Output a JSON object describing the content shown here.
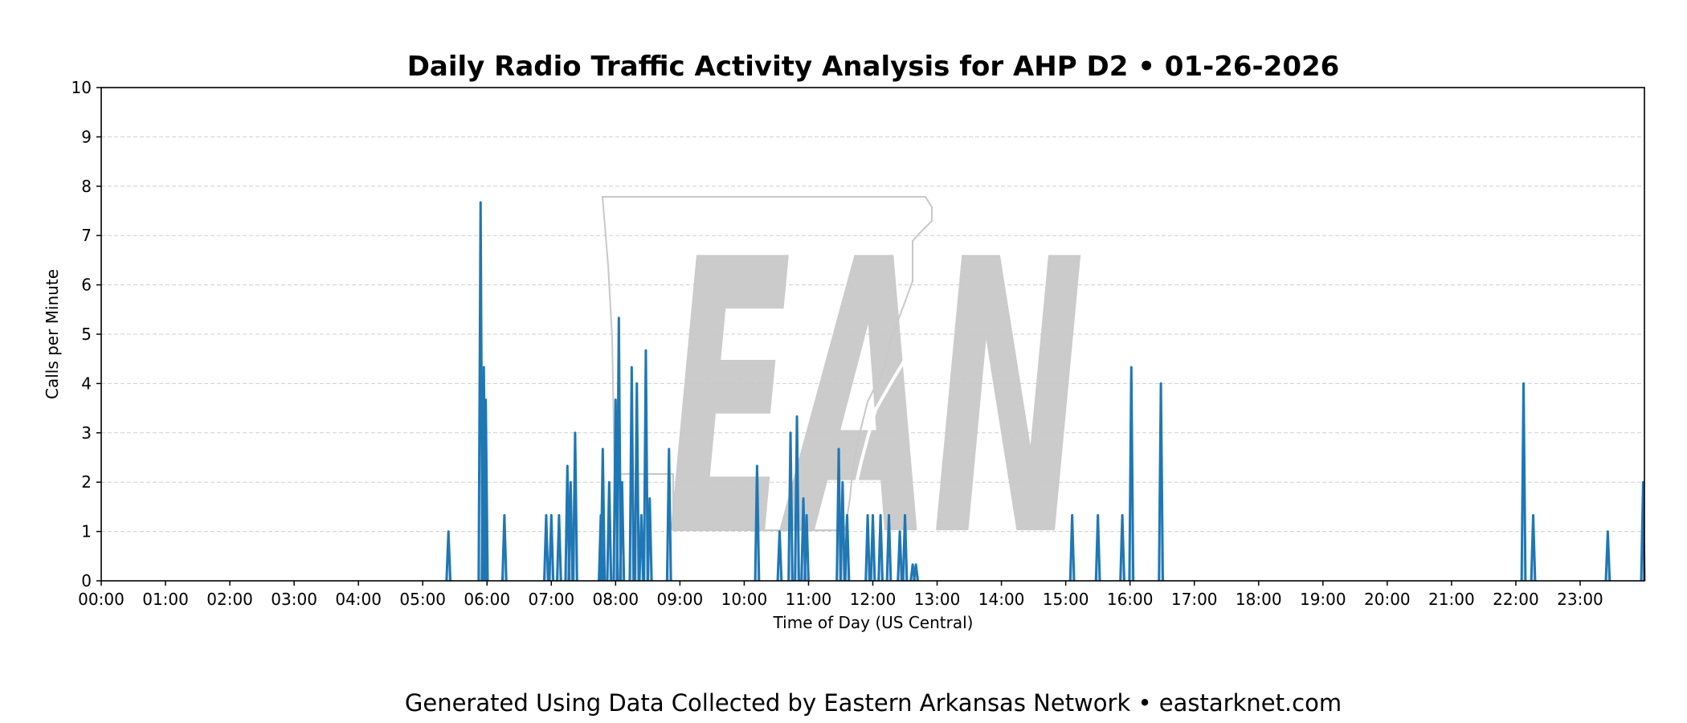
{
  "chart_data": {
    "type": "area",
    "title": "Daily Radio Traffic Activity Analysis for AHP D2 • 01-26-2026",
    "xlabel": "Time of Day (US Central)",
    "ylabel": "Calls per Minute",
    "xlim": [
      0,
      24
    ],
    "ylim": [
      0,
      10
    ],
    "grid": true,
    "x_tick_labels": [
      "00:00",
      "01:00",
      "02:00",
      "03:00",
      "04:00",
      "05:00",
      "06:00",
      "07:00",
      "08:00",
      "09:00",
      "10:00",
      "11:00",
      "12:00",
      "13:00",
      "14:00",
      "15:00",
      "16:00",
      "17:00",
      "18:00",
      "19:00",
      "20:00",
      "21:00",
      "22:00",
      "23:00"
    ],
    "y_tick_labels": [
      "0",
      "1",
      "2",
      "3",
      "4",
      "5",
      "6",
      "7",
      "8",
      "9",
      "10"
    ],
    "series": [
      {
        "color": "#1f77b4",
        "points": [
          [
            5.4,
            1.0
          ],
          [
            5.9,
            7.67
          ],
          [
            5.95,
            4.33
          ],
          [
            5.98,
            3.67
          ],
          [
            6.27,
            1.33
          ],
          [
            6.92,
            1.33
          ],
          [
            7.0,
            1.33
          ],
          [
            7.12,
            1.33
          ],
          [
            7.25,
            2.33
          ],
          [
            7.3,
            2.0
          ],
          [
            7.37,
            3.0
          ],
          [
            7.77,
            1.33
          ],
          [
            7.8,
            2.67
          ],
          [
            7.9,
            2.0
          ],
          [
            8.0,
            3.67
          ],
          [
            8.05,
            5.33
          ],
          [
            8.1,
            2.0
          ],
          [
            8.25,
            4.33
          ],
          [
            8.33,
            4.0
          ],
          [
            8.4,
            1.33
          ],
          [
            8.47,
            4.67
          ],
          [
            8.53,
            1.67
          ],
          [
            8.83,
            2.67
          ],
          [
            10.2,
            2.33
          ],
          [
            10.55,
            1.0
          ],
          [
            10.72,
            3.0
          ],
          [
            10.82,
            3.33
          ],
          [
            10.92,
            1.67
          ],
          [
            10.97,
            1.33
          ],
          [
            11.47,
            2.67
          ],
          [
            11.53,
            2.0
          ],
          [
            11.6,
            1.33
          ],
          [
            11.92,
            1.33
          ],
          [
            12.0,
            1.33
          ],
          [
            12.12,
            1.33
          ],
          [
            12.25,
            1.33
          ],
          [
            12.42,
            1.0
          ],
          [
            12.5,
            1.33
          ],
          [
            12.62,
            0.33
          ],
          [
            12.67,
            0.33
          ],
          [
            15.1,
            1.33
          ],
          [
            15.5,
            1.33
          ],
          [
            15.88,
            1.33
          ],
          [
            16.02,
            4.33
          ],
          [
            16.48,
            4.0
          ],
          [
            22.12,
            4.0
          ],
          [
            22.27,
            1.33
          ],
          [
            23.43,
            1.0
          ],
          [
            23.98,
            2.0
          ]
        ]
      }
    ],
    "watermark_text": "EAN"
  },
  "footer_text": "Generated Using Data Collected by Eastern Arkansas Network • eastarknet.com"
}
